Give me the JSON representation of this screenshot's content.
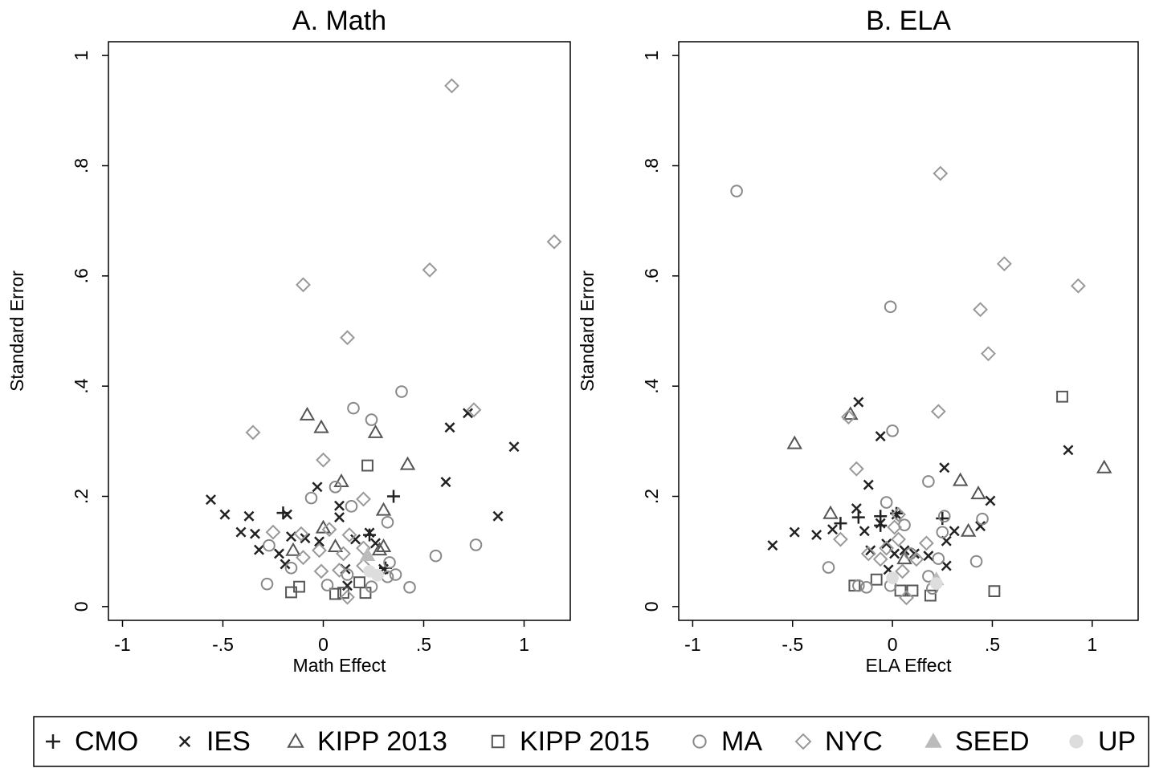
{
  "chart_data": [
    {
      "type": "scatter",
      "title": "A. Math",
      "xlabel": "Math Effect",
      "ylabel": "Standard Error",
      "xlim": [
        -1.07,
        1.23
      ],
      "ylim": [
        -0.025,
        1.025
      ],
      "xticks": [
        -1,
        {
          "value": -0.5,
          "label": "-.5"
        },
        0,
        {
          "value": 0.5,
          "label": ".5"
        },
        1
      ],
      "yticks": [
        0,
        {
          "value": 0.2,
          "label": ".2"
        },
        {
          "value": 0.4,
          "label": ".4"
        },
        {
          "value": 0.6,
          "label": ".6"
        },
        {
          "value": 0.8,
          "label": ".8"
        },
        1
      ],
      "series": [
        {
          "name": "CMO",
          "color": "#222222",
          "marker": "plus",
          "x": [
            -0.2,
            0.35,
            0.23,
            0.31
          ],
          "values": [
            0.17,
            0.2,
            0.13,
            0.07
          ]
        },
        {
          "name": "IES",
          "color": "#222222",
          "marker": "x",
          "x": [
            -0.56,
            -0.49,
            -0.37,
            -0.41,
            -0.34,
            -0.32,
            -0.22,
            -0.18,
            -0.16,
            -0.19,
            -0.09,
            -0.03,
            0.08,
            0.08,
            -0.02,
            0.11,
            0.16,
            0.23,
            0.26,
            0.3,
            0.63,
            0.72,
            0.61,
            0.95,
            0.87,
            0.12
          ],
          "values": [
            0.194,
            0.167,
            0.164,
            0.135,
            0.132,
            0.103,
            0.096,
            0.167,
            0.127,
            0.077,
            0.124,
            0.217,
            0.183,
            0.162,
            0.118,
            0.068,
            0.122,
            0.134,
            0.115,
            0.068,
            0.325,
            0.351,
            0.226,
            0.29,
            0.164,
            0.038
          ]
        },
        {
          "name": "KIPP 2013",
          "color": "#555555",
          "marker": "triangle",
          "x": [
            -0.08,
            -0.01,
            0.26,
            0.42,
            0.09,
            0.3,
            -0.15,
            0,
            0.06,
            0.3,
            0.28
          ],
          "values": [
            0.348,
            0.325,
            0.316,
            0.258,
            0.227,
            0.175,
            0.102,
            0.143,
            0.109,
            0.109,
            0.103
          ]
        },
        {
          "name": "KIPP 2015",
          "color": "#555555",
          "marker": "square",
          "x": [
            0.22,
            -0.16,
            -0.12,
            0.06,
            0.1,
            0.18,
            0.21
          ],
          "values": [
            0.256,
            0.026,
            0.036,
            0.023,
            0.025,
            0.044,
            0.025
          ]
        },
        {
          "name": "MA",
          "color": "#888888",
          "marker": "circle",
          "x": [
            0.39,
            0.15,
            0.24,
            -0.06,
            0.06,
            0.14,
            0.32,
            -0.27,
            -0.16,
            -0.28,
            0.02,
            0.12,
            0.24,
            0.33,
            0.36,
            0.32,
            0.43,
            0.56,
            0.76
          ],
          "values": [
            0.39,
            0.36,
            0.339,
            0.197,
            0.217,
            0.182,
            0.153,
            0.111,
            0.07,
            0.041,
            0.039,
            0.058,
            0.036,
            0.08,
            0.058,
            0.054,
            0.035,
            0.092,
            0.112
          ]
        },
        {
          "name": "NYC",
          "color": "#999999",
          "marker": "diamond",
          "x": [
            0.64,
            1.15,
            0.53,
            -0.1,
            0.12,
            0.75,
            -0.35,
            0,
            0.2,
            -0.25,
            -0.11,
            0.03,
            -0.1,
            -0.01,
            0.1,
            0.13,
            0.2,
            0.2,
            0.12,
            0.08,
            -0.02
          ],
          "values": [
            0.945,
            0.662,
            0.611,
            0.584,
            0.488,
            0.357,
            0.316,
            0.266,
            0.195,
            0.135,
            0.132,
            0.14,
            0.089,
            0.064,
            0.096,
            0.13,
            0.106,
            0.074,
            0.017,
            0.066,
            0.102
          ]
        },
        {
          "name": "SEED",
          "color": "#bbbbbb",
          "marker": "triangle-filled",
          "x": [
            0.22
          ],
          "values": [
            0.093
          ]
        },
        {
          "name": "UP",
          "color": "#dddddd",
          "marker": "circle-filled",
          "x": [
            0.27,
            0.23
          ],
          "values": [
            0.057,
            0.064
          ]
        }
      ]
    },
    {
      "type": "scatter",
      "title": "B. ELA",
      "xlabel": "ELA Effect",
      "ylabel": "Standard Error",
      "xlim": [
        -1.07,
        1.23
      ],
      "ylim": [
        -0.025,
        1.025
      ],
      "xticks": [
        -1,
        {
          "value": -0.5,
          "label": "-.5"
        },
        0,
        {
          "value": 0.5,
          "label": ".5"
        },
        1
      ],
      "yticks": [
        0,
        {
          "value": 0.2,
          "label": ".2"
        },
        {
          "value": 0.4,
          "label": ".4"
        },
        {
          "value": 0.6,
          "label": ".6"
        },
        {
          "value": 0.8,
          "label": ".8"
        },
        1
      ],
      "series": [
        {
          "name": "CMO",
          "color": "#222222",
          "marker": "plus",
          "x": [
            -0.17,
            -0.26,
            -0.06,
            0.02,
            0.25,
            -0.06
          ],
          "values": [
            0.162,
            0.151,
            0.164,
            0.169,
            0.16,
            0.147
          ]
        },
        {
          "name": "IES",
          "color": "#222222",
          "marker": "x",
          "x": [
            -0.6,
            -0.49,
            -0.38,
            -0.3,
            -0.17,
            -0.06,
            -0.12,
            -0.18,
            -0.14,
            -0.06,
            -0.11,
            -0.03,
            0.01,
            0.06,
            0.11,
            0.18,
            0.26,
            0.31,
            0.27,
            0.44,
            0.49,
            0.88,
            -0.02,
            0.27,
            0.02
          ],
          "values": [
            0.111,
            0.135,
            0.13,
            0.14,
            0.371,
            0.309,
            0.221,
            0.178,
            0.137,
            0.151,
            0.102,
            0.114,
            0.096,
            0.102,
            0.096,
            0.092,
            0.252,
            0.137,
            0.119,
            0.146,
            0.192,
            0.284,
            0.067,
            0.074,
            0.167
          ]
        },
        {
          "name": "KIPP 2013",
          "color": "#555555",
          "marker": "triangle",
          "x": [
            -0.49,
            -0.21,
            0.34,
            0.43,
            0.38,
            1.06,
            -0.31,
            0.06
          ],
          "values": [
            0.296,
            0.349,
            0.229,
            0.205,
            0.137,
            0.252,
            0.169,
            0.087
          ]
        },
        {
          "name": "KIPP 2015",
          "color": "#555555",
          "marker": "square",
          "x": [
            0.85,
            0.51,
            -0.19,
            -0.08,
            0.04,
            0.19,
            0.1
          ],
          "values": [
            0.381,
            0.028,
            0.038,
            0.049,
            0.029,
            0.02,
            0.029
          ]
        },
        {
          "name": "MA",
          "color": "#888888",
          "marker": "circle",
          "x": [
            -0.78,
            -0.01,
            0,
            -0.03,
            0.18,
            0.26,
            0.45,
            0.25,
            -0.32,
            -0.17,
            -0.13,
            -0.01,
            0.18,
            0.23,
            0.2,
            0.42,
            0.09,
            0.06
          ],
          "values": [
            0.754,
            0.544,
            0.319,
            0.189,
            0.227,
            0.164,
            0.159,
            0.135,
            0.071,
            0.038,
            0.035,
            0.038,
            0.055,
            0.087,
            0.033,
            0.082,
            0.096,
            0.148
          ]
        },
        {
          "name": "NYC",
          "color": "#999999",
          "marker": "diamond",
          "x": [
            0.24,
            0.56,
            0.93,
            0.44,
            0.48,
            0.23,
            -0.22,
            -0.18,
            -0.26,
            -0.12,
            -0.06,
            0.01,
            0.03,
            0.12,
            0.17,
            0.05,
            0.07,
            0.03,
            -0.03
          ],
          "values": [
            0.786,
            0.622,
            0.582,
            0.539,
            0.459,
            0.354,
            0.344,
            0.25,
            0.122,
            0.096,
            0.086,
            0.144,
            0.122,
            0.086,
            0.115,
            0.064,
            0.016,
            0.167,
            0.106
          ]
        },
        {
          "name": "SEED",
          "color": "#bbbbbb",
          "marker": "triangle-filled",
          "x": [
            0.22
          ],
          "values": [
            0.049
          ]
        },
        {
          "name": "UP",
          "color": "#dddddd",
          "marker": "circle-filled",
          "x": [
            0,
            0.22
          ],
          "values": [
            0.052,
            0.042
          ]
        }
      ]
    }
  ]
}
